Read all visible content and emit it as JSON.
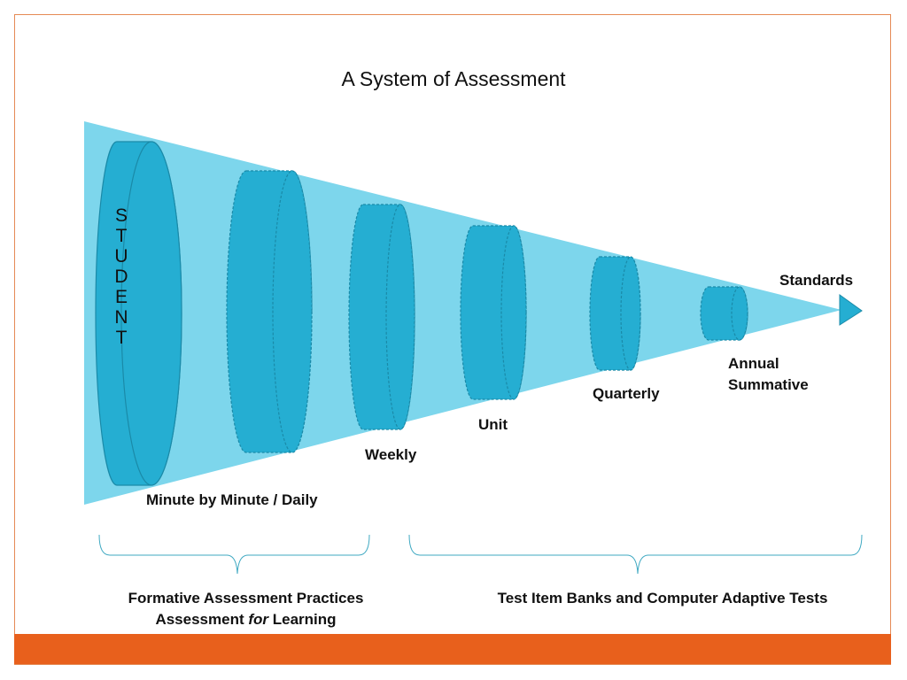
{
  "title": "A System of Assessment",
  "colors": {
    "cone": "#7dd6ec",
    "cylinder_fill": "#25aed2",
    "cylinder_stroke": "#1a8aa8",
    "accent_bar": "#e8601c",
    "frame_border": "#e58a55",
    "brace": "#3fa9c2"
  },
  "student_letters": [
    "S",
    "T",
    "U",
    "D",
    "E",
    "N",
    "T"
  ],
  "labels": {
    "minute": "Minute by Minute / Daily",
    "weekly": "Weekly",
    "unit": "Unit",
    "quarterly": "Quarterly",
    "annual_line1": "Annual",
    "annual_line2": "Summative",
    "standards": "Standards"
  },
  "captions": {
    "left_line1": "Formative Assessment Practices",
    "left_line2_pre": "Assessment ",
    "left_line2_em": "for",
    "left_line2_post": " Learning",
    "right": "Test Item Banks and Computer Adaptive Tests"
  }
}
